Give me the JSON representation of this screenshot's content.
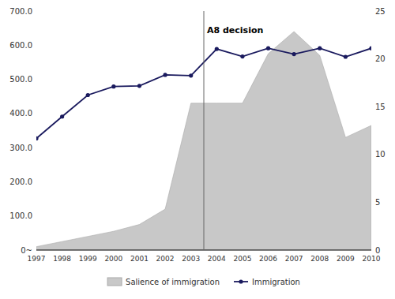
{
  "chart_data": {
    "type": "line",
    "x": [
      1997,
      1998,
      1999,
      2000,
      2001,
      2002,
      2003,
      2004,
      2005,
      2006,
      2007,
      2008,
      2009,
      2010
    ],
    "series": [
      {
        "name": "Salience of immigration",
        "type": "area",
        "color": "#c8c8c8",
        "values": [
          10,
          25,
          40,
          55,
          75,
          120,
          430,
          430,
          430,
          575,
          640,
          570,
          330,
          365
        ]
      },
      {
        "name": "Immigration",
        "type": "line",
        "color": "#1a1a5e",
        "marker": "circle",
        "values": [
          327,
          391,
          454,
          479,
          481,
          513,
          511,
          589,
          567,
          591,
          574,
          591,
          566,
          591
        ]
      }
    ],
    "xlim": [
      1997,
      2010
    ],
    "xticks": [
      1997,
      1998,
      1999,
      2000,
      2001,
      2002,
      2003,
      2004,
      2005,
      2006,
      2007,
      2008,
      2009,
      2010
    ],
    "ylim": [
      0,
      700
    ],
    "yticks": [
      {
        "value": 0,
        "label": "0~"
      },
      {
        "value": 100,
        "label": "100.0"
      },
      {
        "value": 200,
        "label": "200.0"
      },
      {
        "value": 300,
        "label": "300.0"
      },
      {
        "value": 400,
        "label": "400.0"
      },
      {
        "value": 500,
        "label": "500.0"
      },
      {
        "value": 600,
        "label": "600.0"
      },
      {
        "value": 700,
        "label": "700.0"
      }
    ],
    "y2lim": [
      0,
      25
    ],
    "y2ticks": [
      0,
      5,
      10,
      15,
      20,
      25
    ],
    "annotations": [
      {
        "x": 2003.5,
        "text": "A8 decision"
      }
    ],
    "grid": false,
    "legend": "bottom"
  }
}
